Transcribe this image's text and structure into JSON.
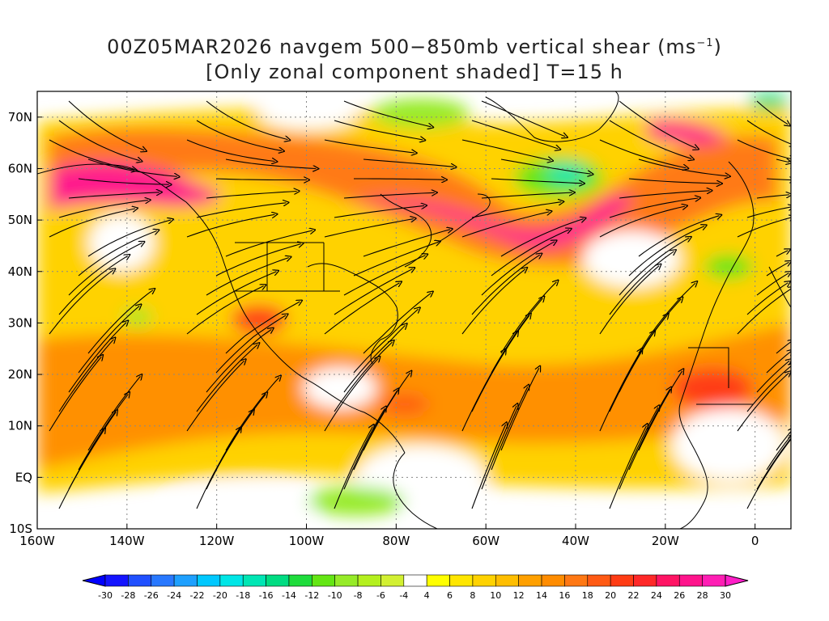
{
  "title": {
    "line1_main": "00Z05MAR2026 navgem 500−850mb vertical shear (ms",
    "line1_sup": "−1",
    "line1_end": ")",
    "line2": "[Only zonal component shaded] T=15 h"
  },
  "axes": {
    "lon_ticks": [
      "160W",
      "140W",
      "120W",
      "100W",
      "80W",
      "60W",
      "40W",
      "20W",
      "0"
    ],
    "lat_ticks": [
      "70N",
      "60N",
      "50N",
      "40N",
      "30N",
      "20N",
      "10N",
      "EQ",
      "10S"
    ],
    "lon_values": [
      -160,
      -140,
      -120,
      -100,
      -80,
      -60,
      -40,
      -20,
      0
    ],
    "lat_values": [
      70,
      60,
      50,
      40,
      30,
      20,
      10,
      0,
      -10
    ]
  },
  "colorbar": {
    "labels": [
      "-30",
      "-28",
      "-26",
      "-24",
      "-22",
      "-20",
      "-18",
      "-16",
      "-14",
      "-12",
      "-10",
      "-8",
      "-6",
      "-4",
      "4",
      "6",
      "8",
      "10",
      "12",
      "14",
      "16",
      "18",
      "20",
      "22",
      "24",
      "26",
      "28",
      "30"
    ],
    "colors": [
      "#1414ff",
      "#2050ff",
      "#2878ff",
      "#1ea0ff",
      "#00c8ff",
      "#00e6e6",
      "#00e6b4",
      "#00dc82",
      "#1edc3c",
      "#64e614",
      "#96eb28",
      "#b4f01e",
      "#d2f032",
      "#ffffff",
      "#ffff00",
      "#ffe600",
      "#ffd200",
      "#ffbe00",
      "#ffa000",
      "#ff8c00",
      "#ff7814",
      "#ff5a14",
      "#ff3c14",
      "#ff2828",
      "#ff1464",
      "#ff148c",
      "#ff1eb4"
    ],
    "under_color": "#0000ff",
    "over_color": "#ff1ec8"
  }
}
